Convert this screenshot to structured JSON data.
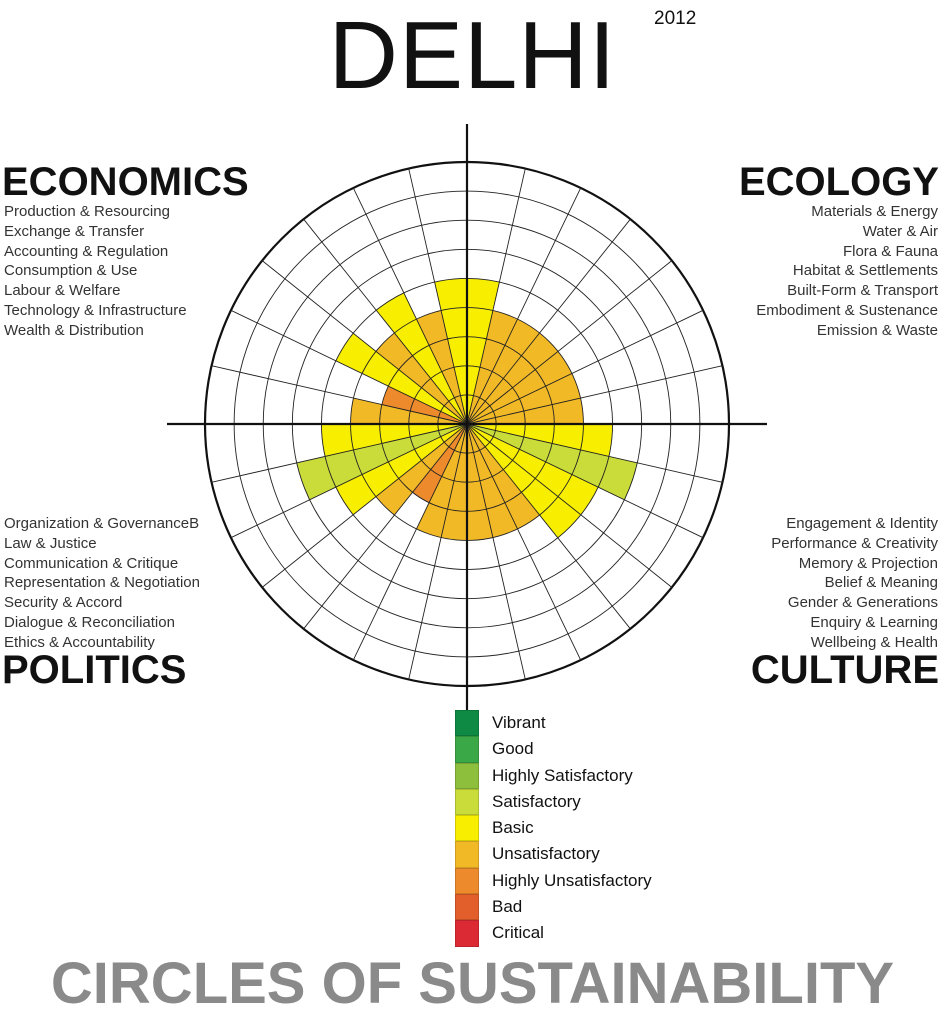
{
  "title": "DELHI",
  "year": "2012",
  "footer": "CIRCLES OF SUSTAINABILITY",
  "domains": {
    "economics": {
      "heading": "ECONOMICS",
      "items": [
        "Production & Resourcing",
        "Exchange & Transfer",
        "Accounting & Regulation",
        "Consumption & Use",
        "Labour & Welfare",
        "Technology & Infrastructure",
        "Wealth & Distribution"
      ]
    },
    "ecology": {
      "heading": "ECOLOGY",
      "items": [
        "Materials & Energy",
        "Water & Air",
        "Flora & Fauna",
        "Habitat & Settlements",
        "Built-Form & Transport",
        "Embodiment & Sustenance",
        "Emission & Waste"
      ]
    },
    "politics": {
      "heading": "POLITICS",
      "items": [
        "Organization & GovernanceB",
        "Law & Justice",
        "Communication & Critique",
        "Representation & Negotiation",
        "Security & Accord",
        "Dialogue & Reconciliation",
        "Ethics & Accountability"
      ]
    },
    "culture": {
      "heading": "CULTURE",
      "items": [
        "Engagement & Identity",
        "Performance & Creativity",
        "Memory & Projection",
        "Belief & Meaning",
        "Gender & Generations",
        "Enquiry & Learning",
        "Wellbeing & Health"
      ]
    }
  },
  "legend": [
    {
      "label": "Vibrant",
      "color": "#0f8a45"
    },
    {
      "label": "Good",
      "color": "#3aa846"
    },
    {
      "label": "Highly Satisfactory",
      "color": "#8dbe3c"
    },
    {
      "label": "Satisfactory",
      "color": "#c9dc3a"
    },
    {
      "label": "Basic",
      "color": "#f7ee00"
    },
    {
      "label": "Unsatisfactory",
      "color": "#f2b927"
    },
    {
      "label": "Highly Unsatisfactory",
      "color": "#ec8a2c"
    },
    {
      "label": "Bad",
      "color": "#e25e2a"
    },
    {
      "label": "Critical",
      "color": "#dc2a35"
    }
  ],
  "chart_data": {
    "type": "radial-bar",
    "scale": [
      "Critical",
      "Bad",
      "Highly Unsatisfactory",
      "Unsatisfactory",
      "Basic",
      "Satisfactory",
      "Highly Satisfactory",
      "Good",
      "Vibrant"
    ],
    "rmax": 9,
    "grid": true,
    "series": [
      {
        "domain": "ECOLOGY",
        "order": "clockwise from top",
        "values": [
          5,
          4,
          4,
          4,
          4,
          4,
          4
        ]
      },
      {
        "domain": "CULTURE",
        "order": "clockwise from right",
        "values": [
          5,
          6,
          5,
          5,
          4,
          4,
          4
        ]
      },
      {
        "domain": "POLITICS",
        "order": "clockwise from bottom",
        "values": [
          4,
          4,
          3,
          4,
          5,
          6,
          5
        ]
      },
      {
        "domain": "ECONOMICS",
        "order": "clockwise from left",
        "values": [
          4,
          3,
          5,
          4,
          5,
          4,
          5
        ]
      }
    ]
  }
}
